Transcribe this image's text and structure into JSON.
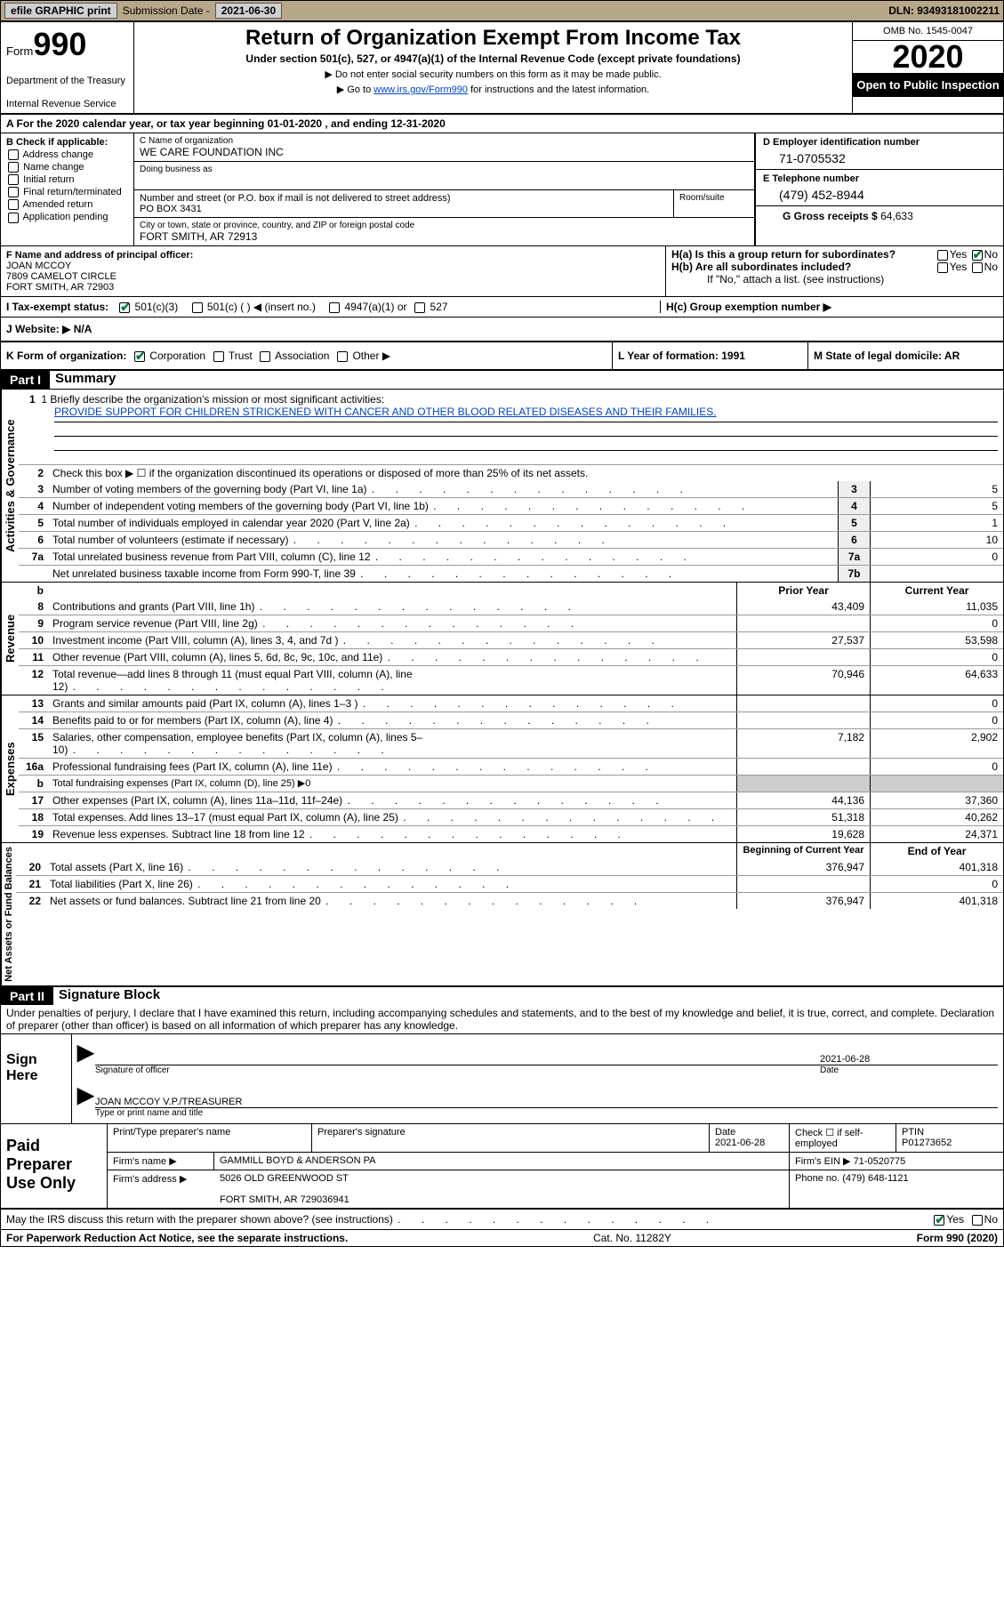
{
  "topbar": {
    "efile": "efile GRAPHIC print",
    "sub_lbl": "Submission Date -",
    "sub_val": "2021-06-30",
    "dln": "DLN: 93493181002211"
  },
  "header": {
    "form_word": "Form",
    "form_num": "990",
    "dept": "Department of the Treasury",
    "irs": "Internal Revenue Service",
    "title": "Return of Organization Exempt From Income Tax",
    "sub": "Under section 501(c), 527, or 4947(a)(1) of the Internal Revenue Code (except private foundations)",
    "note1": "▶ Do not enter social security numbers on this form as it may be made public.",
    "note2_pre": "▶ Go to ",
    "note2_link": "www.irs.gov/Form990",
    "note2_post": " for instructions and the latest information.",
    "omb": "OMB No. 1545-0047",
    "year": "2020",
    "opi": "Open to Public Inspection"
  },
  "rowA": "A For the 2020 calendar year, or tax year beginning 01-01-2020    , and ending 12-31-2020",
  "colB": {
    "title": "B Check if applicable:",
    "items": [
      "Address change",
      "Name change",
      "Initial return",
      "Final return/terminated",
      "Amended return",
      "Application pending"
    ]
  },
  "colC": {
    "name_lbl": "C Name of organization",
    "name_val": "WE CARE FOUNDATION INC",
    "dba_lbl": "Doing business as",
    "addr_lbl": "Number and street (or P.O. box if mail is not delivered to street address)",
    "room_lbl": "Room/suite",
    "addr_val": "PO BOX 3431",
    "city_lbl": "City or town, state or province, country, and ZIP or foreign postal code",
    "city_val": "FORT SMITH, AR   72913"
  },
  "colD": {
    "ein_lbl": "D Employer identification number",
    "ein_val": "71-0705532",
    "tel_lbl": "E Telephone number",
    "tel_val": "(479) 452-8944",
    "gross_lbl": "G Gross receipts $",
    "gross_val": "64,633"
  },
  "sectionF": {
    "lbl": "F  Name and address of principal officer:",
    "name": "JOAN MCCOY",
    "addr1": "7809 CAMELOT CIRCLE",
    "addr2": "FORT SMITH, AR   72903"
  },
  "sectionH": {
    "ha": "H(a)  Is this a group return for subordinates?",
    "hb": "H(b)  Are all subordinates included?",
    "hb_note": "If \"No,\" attach a list. (see instructions)",
    "hc": "H(c)  Group exemption number ▶",
    "yes": "Yes",
    "no": "No"
  },
  "rowI": {
    "lbl": "I   Tax-exempt status:",
    "o1": "501(c)(3)",
    "o2": "501(c) (  ) ◀ (insert no.)",
    "o3": "4947(a)(1) or",
    "o4": "527"
  },
  "rowJ": "J   Website: ▶   N/A",
  "rowK": {
    "k": "K Form of organization:",
    "corp": "Corporation",
    "trust": "Trust",
    "assoc": "Association",
    "other": "Other ▶",
    "l": "L Year of formation: 1991",
    "m": "M State of legal domicile: AR"
  },
  "part1": {
    "hdr": "Part I",
    "title": "Summary",
    "line1_lbl": "1  Briefly describe the organization's mission or most significant activities:",
    "line1_val": "PROVIDE SUPPORT FOR CHILDREN STRICKENED WITH CANCER AND OTHER BLOOD RELATED DISEASES AND THEIR FAMILIES.",
    "line2": "Check this box ▶ ☐  if the organization discontinued its operations or disposed of more than 25% of its net assets.",
    "side1": "Activities & Governance",
    "side2": "Revenue",
    "side3": "Expenses",
    "side4": "Net Assets or Fund Balances",
    "rows_num": [
      {
        "n": "3",
        "t": "Number of voting members of the governing body (Part VI, line 1a)",
        "b": "3",
        "v": "5"
      },
      {
        "n": "4",
        "t": "Number of independent voting members of the governing body (Part VI, line 1b)",
        "b": "4",
        "v": "5"
      },
      {
        "n": "5",
        "t": "Total number of individuals employed in calendar year 2020 (Part V, line 2a)",
        "b": "5",
        "v": "1"
      },
      {
        "n": "6",
        "t": "Total number of volunteers (estimate if necessary)",
        "b": "6",
        "v": "10"
      },
      {
        "n": "7a",
        "t": "Total unrelated business revenue from Part VIII, column (C), line 12",
        "b": "7a",
        "v": "0"
      },
      {
        "n": "",
        "t": "Net unrelated business taxable income from Form 990-T, line 39",
        "b": "7b",
        "v": ""
      }
    ],
    "hdr_prior": "Prior Year",
    "hdr_curr": "Current Year",
    "rows_rev": [
      {
        "n": "8",
        "t": "Contributions and grants (Part VIII, line 1h)",
        "p": "43,409",
        "c": "11,035"
      },
      {
        "n": "9",
        "t": "Program service revenue (Part VIII, line 2g)",
        "p": "",
        "c": "0"
      },
      {
        "n": "10",
        "t": "Investment income (Part VIII, column (A), lines 3, 4, and 7d )",
        "p": "27,537",
        "c": "53,598"
      },
      {
        "n": "11",
        "t": "Other revenue (Part VIII, column (A), lines 5, 6d, 8c, 9c, 10c, and 11e)",
        "p": "",
        "c": "0"
      },
      {
        "n": "12",
        "t": "Total revenue—add lines 8 through 11 (must equal Part VIII, column (A), line 12)",
        "p": "70,946",
        "c": "64,633"
      }
    ],
    "rows_exp": [
      {
        "n": "13",
        "t": "Grants and similar amounts paid (Part IX, column (A), lines 1–3 )",
        "p": "",
        "c": "0"
      },
      {
        "n": "14",
        "t": "Benefits paid to or for members (Part IX, column (A), line 4)",
        "p": "",
        "c": "0"
      },
      {
        "n": "15",
        "t": "Salaries, other compensation, employee benefits (Part IX, column (A), lines 5–10)",
        "p": "7,182",
        "c": "2,902"
      },
      {
        "n": "16a",
        "t": "Professional fundraising fees (Part IX, column (A), line 11e)",
        "p": "",
        "c": "0"
      },
      {
        "n": "b",
        "t": "Total fundraising expenses (Part IX, column (D), line 25) ▶0",
        "p": "",
        "c": ""
      },
      {
        "n": "17",
        "t": "Other expenses (Part IX, column (A), lines 11a–11d, 11f–24e)",
        "p": "44,136",
        "c": "37,360"
      },
      {
        "n": "18",
        "t": "Total expenses. Add lines 13–17 (must equal Part IX, column (A), line 25)",
        "p": "51,318",
        "c": "40,262"
      },
      {
        "n": "19",
        "t": "Revenue less expenses. Subtract line 18 from line 12",
        "p": "19,628",
        "c": "24,371"
      }
    ],
    "hdr_beg": "Beginning of Current Year",
    "hdr_end": "End of Year",
    "rows_net": [
      {
        "n": "20",
        "t": "Total assets (Part X, line 16)",
        "p": "376,947",
        "c": "401,318"
      },
      {
        "n": "21",
        "t": "Total liabilities (Part X, line 26)",
        "p": "",
        "c": "0"
      },
      {
        "n": "22",
        "t": "Net assets or fund balances. Subtract line 21 from line 20",
        "p": "376,947",
        "c": "401,318"
      }
    ]
  },
  "part2": {
    "hdr": "Part II",
    "title": "Signature Block",
    "decl": "Under penalties of perjury, I declare that I have examined this return, including accompanying schedules and statements, and to the best of my knowledge and belief, it is true, correct, and complete. Declaration of preparer (other than officer) is based on all information of which preparer has any knowledge."
  },
  "sign": {
    "left": "Sign Here",
    "sig_lbl": "Signature of officer",
    "date": "2021-06-28",
    "date_lbl": "Date",
    "name": "JOAN MCCOY V.P./TREASURER",
    "name_lbl": "Type or print name and title"
  },
  "preparer": {
    "left": "Paid Preparer Use Only",
    "h1": "Print/Type preparer's name",
    "h2": "Preparer's signature",
    "h3": "Date",
    "h3v": "2021-06-28",
    "h4": "Check ☐ if self-employed",
    "h5": "PTIN",
    "h5v": "P01273652",
    "firm_lbl": "Firm's name    ▶",
    "firm_val": "GAMMILL BOYD & ANDERSON PA",
    "ein_lbl": "Firm's EIN ▶",
    "ein_val": "71-0520775",
    "addr_lbl": "Firm's address ▶",
    "addr_val": "5026 OLD GREENWOOD ST",
    "addr_val2": "FORT SMITH, AR   729036941",
    "phone_lbl": "Phone no.",
    "phone_val": "(479) 648-1121"
  },
  "lastrow": "May the IRS discuss this return with the preparer shown above? (see instructions)",
  "footer": {
    "l": "For Paperwork Reduction Act Notice, see the separate instructions.",
    "c": "Cat. No. 11282Y",
    "r": "Form 990 (2020)"
  }
}
